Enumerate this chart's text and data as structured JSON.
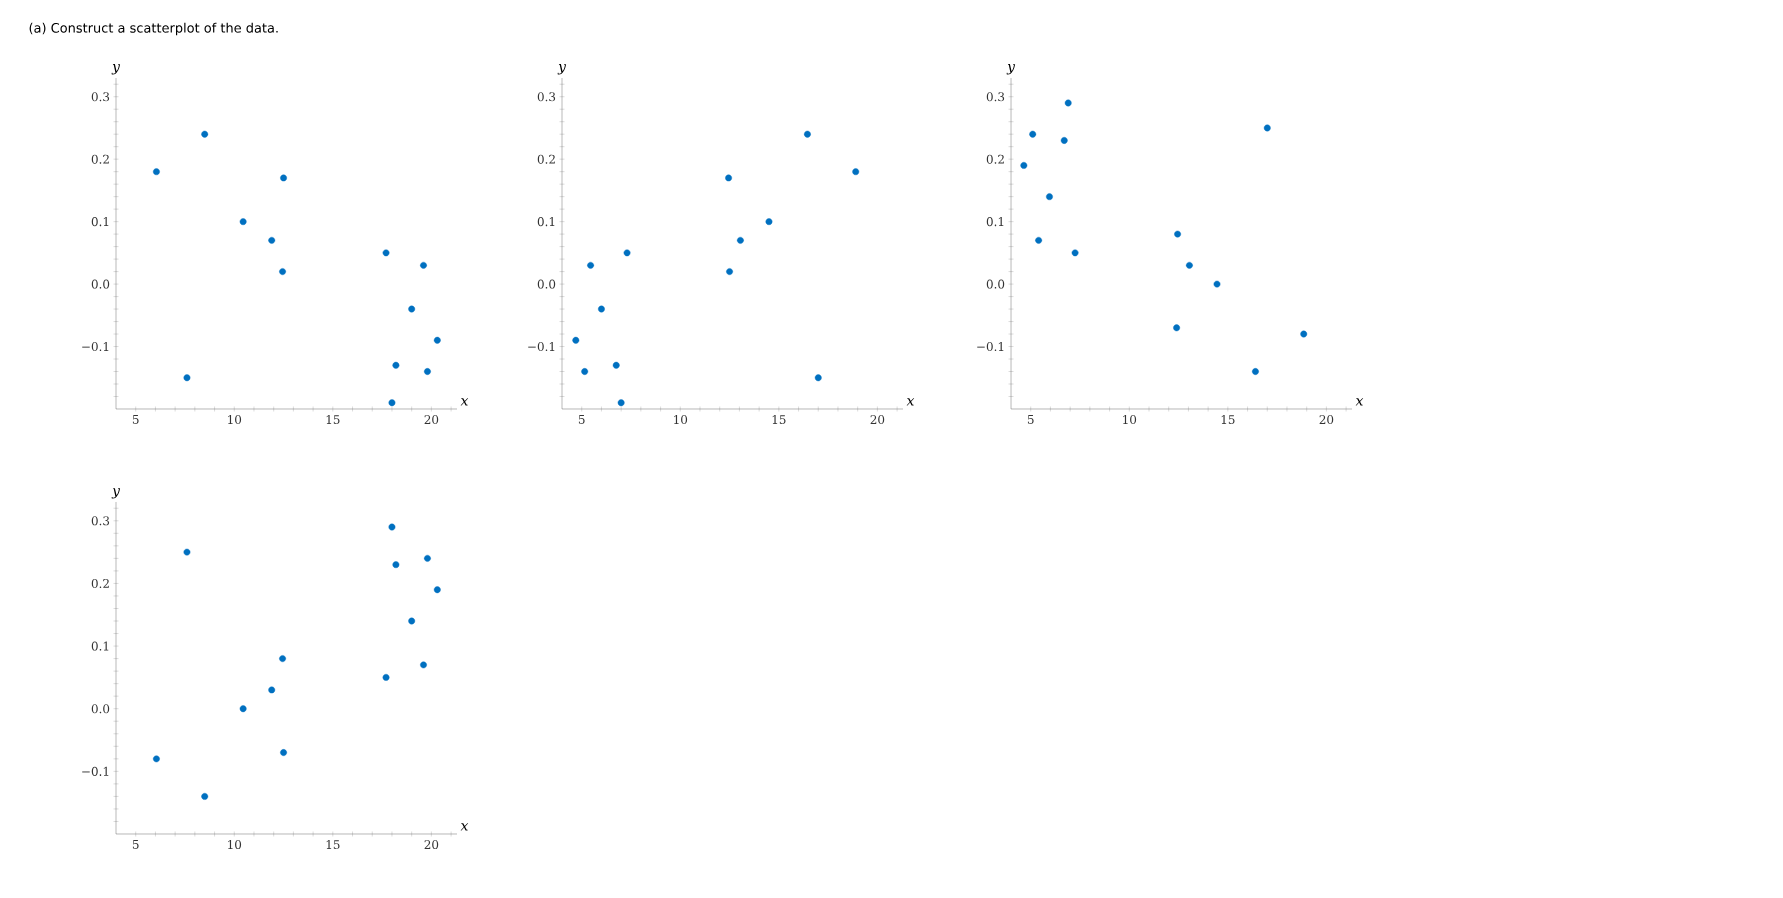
{
  "chart_data": [
    {
      "type": "scatter",
      "title": "(a)  Construct a scatterplot of the data.",
      "xlabel": "x",
      "ylabel": "y",
      "marker": "circle",
      "xlim": [
        4,
        21.3
      ],
      "ylim": [
        -0.2,
        0.33
      ],
      "xticks": [
        5,
        {
          "value": 6,
          "label": null
        },
        {
          "value": 7,
          "label": null
        },
        {
          "value": 8,
          "label": null
        },
        {
          "value": 9,
          "label": null
        },
        10,
        {
          "value": 11,
          "label": null
        },
        {
          "value": 12,
          "label": null
        },
        {
          "value": 13,
          "label": null
        },
        {
          "value": 14,
          "label": null
        },
        15,
        {
          "value": 16,
          "label": null
        },
        {
          "value": 17,
          "label": null
        },
        {
          "value": 18,
          "label": null
        },
        {
          "value": 19,
          "label": null
        },
        20,
        {
          "value": 21,
          "label": null
        }
      ],
      "yticks": [
        {
          "value": -0.1,
          "label": "−0.1"
        },
        {
          "value": 0,
          "label": "0.0"
        },
        0.1,
        0.2,
        0.3,
        {
          "value": -0.18,
          "label": null
        },
        {
          "value": -0.16,
          "label": null
        },
        {
          "value": -0.14,
          "label": null
        },
        {
          "value": -0.12,
          "label": null
        },
        {
          "value": -0.08,
          "label": null
        },
        {
          "value": -0.06,
          "label": null
        },
        {
          "value": -0.04,
          "label": null
        },
        {
          "value": -0.02,
          "label": null
        },
        {
          "value": 0.02,
          "label": null
        },
        {
          "value": 0.04,
          "label": null
        },
        {
          "value": 0.06,
          "label": null
        },
        {
          "value": 0.08,
          "label": null
        },
        {
          "value": 0.12,
          "label": null
        },
        {
          "value": 0.14,
          "label": null
        },
        {
          "value": 0.16,
          "label": null
        },
        {
          "value": 0.18,
          "label": null
        },
        {
          "value": 0.22,
          "label": null
        },
        {
          "value": 0.24,
          "label": null
        },
        {
          "value": 0.26,
          "label": null
        },
        {
          "value": 0.28,
          "label": null
        },
        {
          "value": 0.32,
          "label": null
        }
      ],
      "series": [
        {
          "color": "#0070c0",
          "x": [
            6.05,
            8.5,
            12.5,
            10.45,
            11.9,
            12.45,
            7.6,
            17.7,
            19.6,
            19.0,
            20.3,
            18.2,
            19.8,
            18.0
          ],
          "values": [
            0.18,
            0.24,
            0.17,
            0.1,
            0.07,
            0.02,
            -0.15,
            0.05,
            0.03,
            -0.04,
            -0.09,
            -0.13,
            -0.14,
            -0.19
          ]
        }
      ]
    },
    {
      "type": "scatter",
      "xlabel": "x",
      "ylabel": "y",
      "marker": "circle",
      "xlim": [
        4,
        21.3
      ],
      "ylim": [
        -0.2,
        0.33
      ],
      "xticks": [
        5,
        {
          "value": 6,
          "label": null
        },
        {
          "value": 7,
          "label": null
        },
        {
          "value": 8,
          "label": null
        },
        {
          "value": 9,
          "label": null
        },
        10,
        {
          "value": 11,
          "label": null
        },
        {
          "value": 12,
          "label": null
        },
        {
          "value": 13,
          "label": null
        },
        {
          "value": 14,
          "label": null
        },
        15,
        {
          "value": 16,
          "label": null
        },
        {
          "value": 17,
          "label": null
        },
        {
          "value": 18,
          "label": null
        },
        {
          "value": 19,
          "label": null
        },
        20,
        {
          "value": 21,
          "label": null
        }
      ],
      "yticks": [
        {
          "value": -0.1,
          "label": "−0.1"
        },
        {
          "value": 0,
          "label": "0.0"
        },
        0.1,
        0.2,
        0.3,
        {
          "value": -0.18,
          "label": null
        },
        {
          "value": -0.16,
          "label": null
        },
        {
          "value": -0.14,
          "label": null
        },
        {
          "value": -0.12,
          "label": null
        },
        {
          "value": -0.08,
          "label": null
        },
        {
          "value": -0.06,
          "label": null
        },
        {
          "value": -0.04,
          "label": null
        },
        {
          "value": -0.02,
          "label": null
        },
        {
          "value": 0.02,
          "label": null
        },
        {
          "value": 0.04,
          "label": null
        },
        {
          "value": 0.06,
          "label": null
        },
        {
          "value": 0.08,
          "label": null
        },
        {
          "value": 0.12,
          "label": null
        },
        {
          "value": 0.14,
          "label": null
        },
        {
          "value": 0.16,
          "label": null
        },
        {
          "value": 0.18,
          "label": null
        },
        {
          "value": 0.22,
          "label": null
        },
        {
          "value": 0.24,
          "label": null
        },
        {
          "value": 0.26,
          "label": null
        },
        {
          "value": 0.28,
          "label": null
        },
        {
          "value": 0.32,
          "label": null
        }
      ],
      "series": [
        {
          "color": "#0070c0",
          "x": [
            16.45,
            18.9,
            12.45,
            14.5,
            13.05,
            12.5,
            7.3,
            5.45,
            6.0,
            4.7,
            5.15,
            6.75,
            7.0,
            17.0
          ],
          "values": [
            0.24,
            0.18,
            0.17,
            0.1,
            0.07,
            0.02,
            0.05,
            0.03,
            -0.04,
            -0.09,
            -0.14,
            -0.13,
            -0.19,
            -0.15
          ]
        }
      ]
    },
    {
      "type": "scatter",
      "xlabel": "x",
      "ylabel": "y",
      "marker": "circle",
      "xlim": [
        4,
        21.3
      ],
      "ylim": [
        -0.2,
        0.33
      ],
      "xticks": [
        5,
        {
          "value": 6,
          "label": null
        },
        {
          "value": 7,
          "label": null
        },
        {
          "value": 8,
          "label": null
        },
        {
          "value": 9,
          "label": null
        },
        10,
        {
          "value": 11,
          "label": null
        },
        {
          "value": 12,
          "label": null
        },
        {
          "value": 13,
          "label": null
        },
        {
          "value": 14,
          "label": null
        },
        15,
        {
          "value": 16,
          "label": null
        },
        {
          "value": 17,
          "label": null
        },
        {
          "value": 18,
          "label": null
        },
        {
          "value": 19,
          "label": null
        },
        20,
        {
          "value": 21,
          "label": null
        }
      ],
      "yticks": [
        {
          "value": -0.1,
          "label": "−0.1"
        },
        {
          "value": 0,
          "label": "0.0"
        },
        0.1,
        0.2,
        0.3,
        {
          "value": -0.18,
          "label": null
        },
        {
          "value": -0.16,
          "label": null
        },
        {
          "value": -0.14,
          "label": null
        },
        {
          "value": -0.12,
          "label": null
        },
        {
          "value": -0.08,
          "label": null
        },
        {
          "value": -0.06,
          "label": null
        },
        {
          "value": -0.04,
          "label": null
        },
        {
          "value": -0.02,
          "label": null
        },
        {
          "value": 0.02,
          "label": null
        },
        {
          "value": 0.04,
          "label": null
        },
        {
          "value": 0.06,
          "label": null
        },
        {
          "value": 0.08,
          "label": null
        },
        {
          "value": 0.12,
          "label": null
        },
        {
          "value": 0.14,
          "label": null
        },
        {
          "value": 0.16,
          "label": null
        },
        {
          "value": 0.18,
          "label": null
        },
        {
          "value": 0.22,
          "label": null
        },
        {
          "value": 0.24,
          "label": null
        },
        {
          "value": 0.26,
          "label": null
        },
        {
          "value": 0.28,
          "label": null
        },
        {
          "value": 0.32,
          "label": null
        }
      ],
      "series": [
        {
          "color": "#0070c0",
          "x": [
            6.9,
            5.1,
            6.7,
            4.65,
            5.95,
            5.4,
            7.25,
            17.0,
            12.45,
            13.05,
            14.45,
            12.4,
            16.4,
            18.85
          ],
          "values": [
            0.29,
            0.24,
            0.23,
            0.19,
            0.14,
            0.07,
            0.05,
            0.25,
            0.08,
            0.03,
            0.0,
            -0.07,
            -0.14,
            -0.08
          ]
        }
      ]
    },
    {
      "type": "scatter",
      "xlabel": "x",
      "ylabel": "y",
      "marker": "circle",
      "xlim": [
        4,
        21.3
      ],
      "ylim": [
        -0.2,
        0.33
      ],
      "xticks": [
        5,
        {
          "value": 6,
          "label": null
        },
        {
          "value": 7,
          "label": null
        },
        {
          "value": 8,
          "label": null
        },
        {
          "value": 9,
          "label": null
        },
        10,
        {
          "value": 11,
          "label": null
        },
        {
          "value": 12,
          "label": null
        },
        {
          "value": 13,
          "label": null
        },
        {
          "value": 14,
          "label": null
        },
        15,
        {
          "value": 16,
          "label": null
        },
        {
          "value": 17,
          "label": null
        },
        {
          "value": 18,
          "label": null
        },
        {
          "value": 19,
          "label": null
        },
        20,
        {
          "value": 21,
          "label": null
        }
      ],
      "yticks": [
        {
          "value": -0.1,
          "label": "−0.1"
        },
        {
          "value": 0,
          "label": "0.0"
        },
        0.1,
        0.2,
        0.3,
        {
          "value": -0.18,
          "label": null
        },
        {
          "value": -0.16,
          "label": null
        },
        {
          "value": -0.14,
          "label": null
        },
        {
          "value": -0.12,
          "label": null
        },
        {
          "value": -0.08,
          "label": null
        },
        {
          "value": -0.06,
          "label": null
        },
        {
          "value": -0.04,
          "label": null
        },
        {
          "value": -0.02,
          "label": null
        },
        {
          "value": 0.02,
          "label": null
        },
        {
          "value": 0.04,
          "label": null
        },
        {
          "value": 0.06,
          "label": null
        },
        {
          "value": 0.08,
          "label": null
        },
        {
          "value": 0.12,
          "label": null
        },
        {
          "value": 0.14,
          "label": null
        },
        {
          "value": 0.16,
          "label": null
        },
        {
          "value": 0.18,
          "label": null
        },
        {
          "value": 0.22,
          "label": null
        },
        {
          "value": 0.24,
          "label": null
        },
        {
          "value": 0.26,
          "label": null
        },
        {
          "value": 0.28,
          "label": null
        },
        {
          "value": 0.32,
          "label": null
        }
      ],
      "series": [
        {
          "color": "#0070c0",
          "x": [
            7.6,
            18.0,
            18.2,
            19.8,
            20.3,
            19.0,
            19.6,
            17.7,
            12.45,
            11.9,
            10.45,
            12.5,
            6.05,
            8.5
          ],
          "values": [
            0.25,
            0.29,
            0.23,
            0.24,
            0.19,
            0.14,
            0.07,
            0.05,
            0.08,
            0.03,
            0.0,
            -0.07,
            -0.08,
            -0.14
          ]
        }
      ]
    }
  ]
}
